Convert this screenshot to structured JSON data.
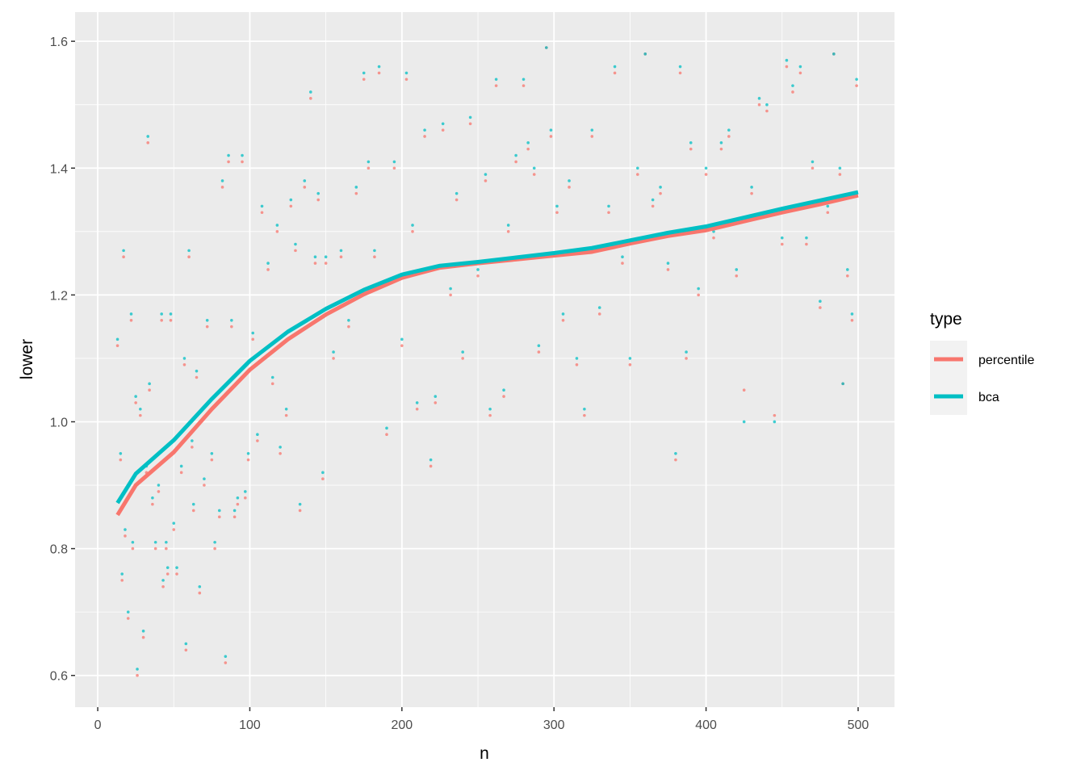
{
  "chart_data": {
    "type": "scatter",
    "x_label": "n",
    "y_label": "lower",
    "legend_title": "type",
    "legend_position": "right",
    "xlim": [
      -14.9,
      523.9
    ],
    "ylim": [
      0.55,
      1.646
    ],
    "xticks": [
      0,
      100,
      200,
      300,
      400,
      500
    ],
    "yticks": [
      {
        "value": 0.6,
        "label": "0.6"
      },
      {
        "value": 0.8,
        "label": "0.8"
      },
      {
        "value": 1.0,
        "label": "1.0"
      },
      {
        "value": 1.2,
        "label": "1.2"
      },
      {
        "value": 1.4,
        "label": "1.4"
      },
      {
        "value": 1.6,
        "label": "1.6"
      }
    ],
    "grid": true,
    "minor_grid": true,
    "series": [
      {
        "name": "percentile",
        "color": "#F8766D",
        "x": [
          13,
          15,
          16,
          17,
          18,
          20,
          22,
          23,
          25,
          26,
          28,
          30,
          32,
          33,
          34,
          36,
          38,
          40,
          42,
          43,
          45,
          46,
          48,
          50,
          52,
          55,
          57,
          58,
          60,
          62,
          63,
          65,
          67,
          70,
          72,
          75,
          77,
          80,
          82,
          84,
          86,
          88,
          90,
          92,
          95,
          97,
          99,
          102,
          105,
          108,
          112,
          115,
          118,
          120,
          124,
          127,
          130,
          133,
          136,
          140,
          143,
          145,
          148,
          150,
          155,
          160,
          165,
          170,
          175,
          178,
          182,
          185,
          190,
          195,
          200,
          203,
          207,
          210,
          215,
          219,
          222,
          227,
          232,
          236,
          240,
          245,
          250,
          255,
          258,
          262,
          267,
          270,
          275,
          280,
          283,
          287,
          290,
          295,
          298,
          302,
          306,
          310,
          315,
          320,
          325,
          330,
          336,
          340,
          345,
          350,
          355,
          360,
          365,
          370,
          375,
          380,
          383,
          387,
          390,
          395,
          400,
          405,
          410,
          415,
          420,
          425,
          430,
          435,
          440,
          445,
          450,
          453,
          457,
          462,
          466,
          470,
          475,
          480,
          484,
          488,
          490,
          493,
          496,
          499
        ],
        "values": [
          1.12,
          0.94,
          0.75,
          1.26,
          0.82,
          0.69,
          1.16,
          0.8,
          1.03,
          0.6,
          1.01,
          0.66,
          0.92,
          1.44,
          1.05,
          0.87,
          0.8,
          0.89,
          1.16,
          0.74,
          0.8,
          0.76,
          1.16,
          0.83,
          0.76,
          0.92,
          1.09,
          0.64,
          1.26,
          0.96,
          0.86,
          1.07,
          0.73,
          0.9,
          1.15,
          0.94,
          0.8,
          0.85,
          1.37,
          0.62,
          1.41,
          1.15,
          0.85,
          0.87,
          1.41,
          0.88,
          0.94,
          1.13,
          0.97,
          1.33,
          1.24,
          1.06,
          1.3,
          0.95,
          1.01,
          1.34,
          1.27,
          0.86,
          1.37,
          1.51,
          1.25,
          1.35,
          0.91,
          1.25,
          1.1,
          1.26,
          1.15,
          1.36,
          1.54,
          1.4,
          1.26,
          1.55,
          0.98,
          1.4,
          1.12,
          1.54,
          1.3,
          1.02,
          1.45,
          0.93,
          1.03,
          1.46,
          1.2,
          1.35,
          1.1,
          1.47,
          1.23,
          1.38,
          1.01,
          1.53,
          1.04,
          1.3,
          1.41,
          1.53,
          1.43,
          1.39,
          1.11,
          1.59,
          1.45,
          1.33,
          1.16,
          1.37,
          1.09,
          1.01,
          1.45,
          1.17,
          1.33,
          1.55,
          1.25,
          1.09,
          1.39,
          1.58,
          1.34,
          1.36,
          1.24,
          0.94,
          1.55,
          1.1,
          1.43,
          1.2,
          1.39,
          1.29,
          1.43,
          1.45,
          1.23,
          1.05,
          1.36,
          1.5,
          1.49,
          1.01,
          1.28,
          1.56,
          1.52,
          1.55,
          1.28,
          1.4,
          1.18,
          1.33,
          1.58,
          1.39,
          1.06,
          1.23,
          1.16,
          1.53
        ],
        "smooth_x": [
          13,
          25,
          50,
          75,
          100,
          125,
          150,
          175,
          200,
          225,
          250,
          275,
          300,
          325,
          350,
          375,
          400,
          425,
          450,
          475,
          500
        ],
        "smooth_values": [
          0.853,
          0.9,
          0.952,
          1.02,
          1.082,
          1.13,
          1.169,
          1.201,
          1.227,
          1.243,
          1.25,
          1.256,
          1.262,
          1.268,
          1.281,
          1.293,
          1.302,
          1.316,
          1.33,
          1.343,
          1.357
        ]
      },
      {
        "name": "bca",
        "color": "#00BFC4",
        "x": [
          13,
          15,
          16,
          17,
          18,
          20,
          22,
          23,
          25,
          26,
          28,
          30,
          32,
          33,
          34,
          36,
          38,
          40,
          42,
          43,
          45,
          46,
          48,
          50,
          52,
          55,
          57,
          58,
          60,
          62,
          63,
          65,
          67,
          70,
          72,
          75,
          77,
          80,
          82,
          84,
          86,
          88,
          90,
          92,
          95,
          97,
          99,
          102,
          105,
          108,
          112,
          115,
          118,
          120,
          124,
          127,
          130,
          133,
          136,
          140,
          143,
          145,
          148,
          150,
          155,
          160,
          165,
          170,
          175,
          178,
          182,
          185,
          190,
          195,
          200,
          203,
          207,
          210,
          215,
          219,
          222,
          227,
          232,
          236,
          240,
          245,
          250,
          255,
          258,
          262,
          267,
          270,
          275,
          280,
          283,
          287,
          290,
          295,
          298,
          302,
          306,
          310,
          315,
          320,
          325,
          330,
          336,
          340,
          345,
          350,
          355,
          360,
          365,
          370,
          375,
          380,
          383,
          387,
          390,
          395,
          400,
          405,
          410,
          415,
          420,
          425,
          430,
          435,
          440,
          445,
          450,
          453,
          457,
          462,
          466,
          470,
          475,
          480,
          484,
          488,
          490,
          493,
          496,
          499
        ],
        "values": [
          1.13,
          0.95,
          0.76,
          1.27,
          0.83,
          0.7,
          1.17,
          0.81,
          1.04,
          0.61,
          1.02,
          0.67,
          0.93,
          1.45,
          1.06,
          0.88,
          0.81,
          0.9,
          1.17,
          0.75,
          0.81,
          0.77,
          1.17,
          0.84,
          0.77,
          0.93,
          1.1,
          0.65,
          1.27,
          0.97,
          0.87,
          1.08,
          0.74,
          0.91,
          1.16,
          0.95,
          0.81,
          0.86,
          1.38,
          0.63,
          1.42,
          1.16,
          0.86,
          0.88,
          1.42,
          0.89,
          0.95,
          1.14,
          0.98,
          1.34,
          1.25,
          1.07,
          1.31,
          0.96,
          1.02,
          1.35,
          1.28,
          0.87,
          1.38,
          1.52,
          1.26,
          1.36,
          0.92,
          1.26,
          1.11,
          1.27,
          1.16,
          1.37,
          1.55,
          1.41,
          1.27,
          1.56,
          0.99,
          1.41,
          1.13,
          1.55,
          1.31,
          1.03,
          1.46,
          0.94,
          1.04,
          1.47,
          1.21,
          1.36,
          1.11,
          1.48,
          1.24,
          1.39,
          1.02,
          1.54,
          1.05,
          1.31,
          1.42,
          1.54,
          1.44,
          1.4,
          1.12,
          1.59,
          1.46,
          1.34,
          1.17,
          1.38,
          1.1,
          1.02,
          1.46,
          1.18,
          1.34,
          1.56,
          1.26,
          1.1,
          1.4,
          1.58,
          1.35,
          1.37,
          1.25,
          0.95,
          1.56,
          1.11,
          1.44,
          1.21,
          1.4,
          1.3,
          1.44,
          1.46,
          1.24,
          1.0,
          1.37,
          1.51,
          1.5,
          1.0,
          1.29,
          1.57,
          1.53,
          1.56,
          1.29,
          1.41,
          1.19,
          1.34,
          1.58,
          1.4,
          1.06,
          1.24,
          1.17,
          1.54
        ],
        "smooth_x": [
          13,
          25,
          50,
          75,
          100,
          125,
          150,
          175,
          200,
          225,
          250,
          275,
          300,
          325,
          350,
          375,
          400,
          425,
          450,
          475,
          500
        ],
        "smooth_values": [
          0.872,
          0.918,
          0.971,
          1.036,
          1.096,
          1.142,
          1.178,
          1.208,
          1.232,
          1.246,
          1.252,
          1.259,
          1.266,
          1.274,
          1.286,
          1.298,
          1.308,
          1.322,
          1.336,
          1.349,
          1.362
        ]
      }
    ]
  }
}
